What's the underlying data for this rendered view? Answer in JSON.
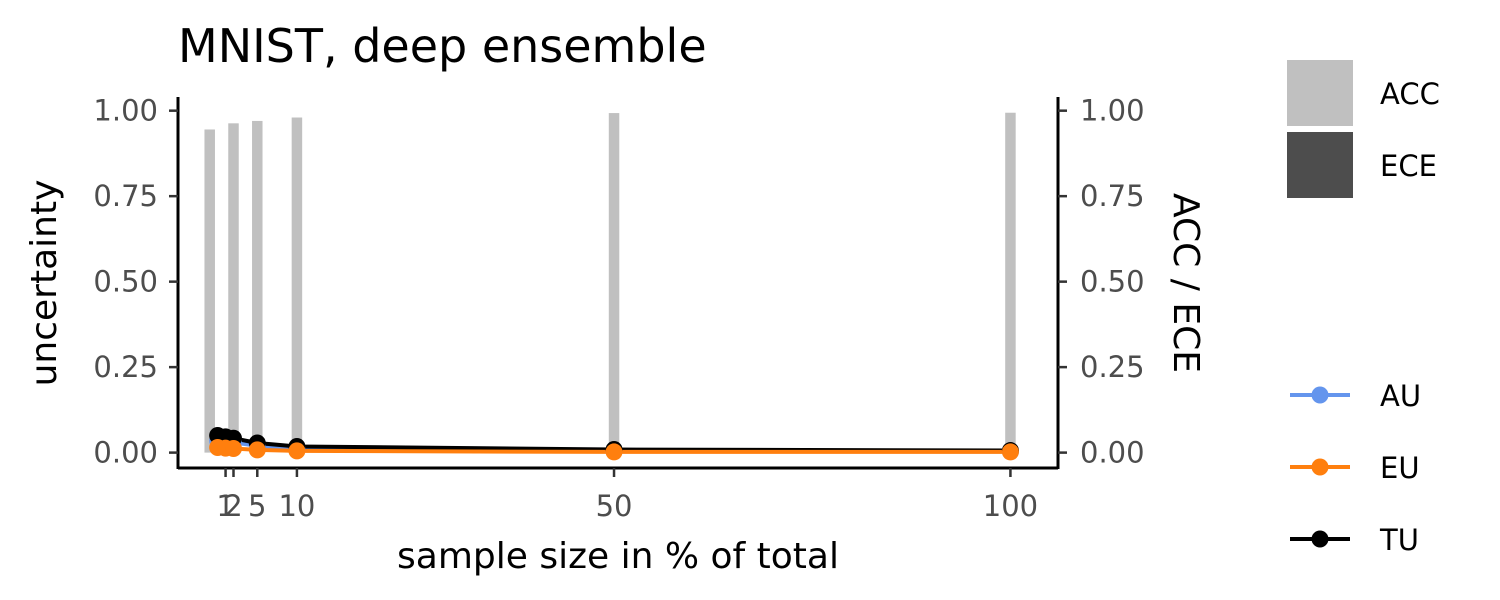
{
  "chart_data": {
    "type": "bar",
    "title": "MNIST, deep ensemble",
    "xlabel": "sample size in % of total",
    "ylabel": "uncertainty",
    "y2label": "ACC / ECE",
    "x_ticks": [
      1,
      2,
      5,
      10,
      50,
      100
    ],
    "x_tick_labels": [
      "1",
      "2",
      "5",
      "10",
      "50",
      "100"
    ],
    "xlim": [
      -5,
      106
    ],
    "ylim": [
      -0.045,
      1.04
    ],
    "y_ticks": [
      0.0,
      0.25,
      0.5,
      0.75,
      1.0
    ],
    "y_tick_labels": [
      "0.00",
      "0.25",
      "0.50",
      "0.75",
      "1.00"
    ],
    "y2_tick_labels": [
      "0.00",
      "0.25",
      "0.50",
      "0.75",
      "1.00"
    ],
    "grid": false,
    "bars": [
      {
        "name": "ACC",
        "color": "#c0c0c0",
        "x": [
          -1,
          2,
          5,
          10,
          50,
          100
        ],
        "values": [
          0.945,
          0.963,
          0.97,
          0.98,
          0.993,
          0.994
        ]
      },
      {
        "name": "ECE",
        "color": "#4d4d4d",
        "x": [
          -1,
          2,
          5,
          10,
          50,
          100
        ],
        "values": [
          0.0,
          0.0,
          0.0,
          0.0,
          0.0,
          0.0
        ]
      }
    ],
    "series": [
      {
        "name": "AU",
        "color": "#6495ed",
        "x": [
          0,
          1,
          2,
          5,
          10,
          50,
          100
        ],
        "values": [
          0.035,
          0.033,
          0.03,
          0.02,
          0.012,
          0.004,
          0.003
        ]
      },
      {
        "name": "EU",
        "color": "#ff7f0e",
        "x": [
          0,
          1,
          2,
          5,
          10,
          50,
          100
        ],
        "values": [
          0.015,
          0.013,
          0.012,
          0.008,
          0.005,
          0.002,
          0.002
        ]
      },
      {
        "name": "TU",
        "color": "#000000",
        "x": [
          0,
          1,
          2,
          5,
          10,
          50,
          100
        ],
        "values": [
          0.05,
          0.046,
          0.042,
          0.028,
          0.018,
          0.009,
          0.006
        ]
      }
    ],
    "legend": {
      "position": "right",
      "fill_entries": [
        {
          "label": "ACC",
          "color": "#c0c0c0"
        },
        {
          "label": "ECE",
          "color": "#4d4d4d"
        }
      ],
      "line_entries": [
        {
          "label": "AU",
          "color": "#6495ed"
        },
        {
          "label": "EU",
          "color": "#ff7f0e"
        },
        {
          "label": "TU",
          "color": "#000000"
        }
      ]
    }
  }
}
